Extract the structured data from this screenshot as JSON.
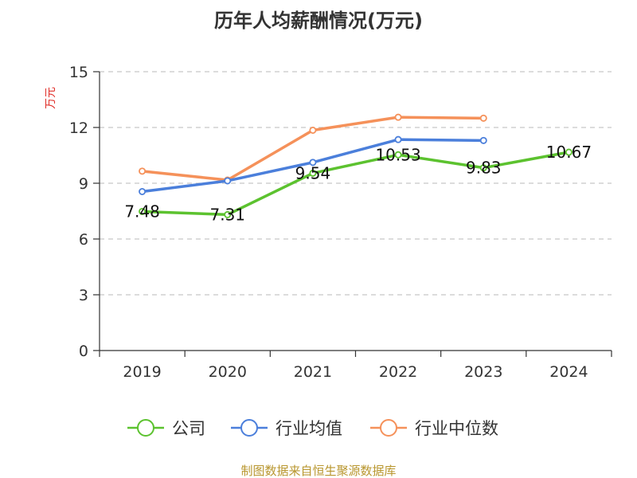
{
  "chart_data": {
    "type": "line",
    "title": "历年人均薪酬情况(万元)",
    "ylabel": "万元",
    "xlabel": "",
    "categories": [
      "2019",
      "2020",
      "2021",
      "2022",
      "2023",
      "2024"
    ],
    "ylim": [
      0,
      15
    ],
    "yticks": [
      0,
      3,
      6,
      9,
      12,
      15
    ],
    "grid": true,
    "legend_position": "bottom",
    "series": [
      {
        "name": "公司",
        "color": "#5cc22f",
        "values": [
          7.48,
          7.31,
          9.54,
          10.53,
          9.83,
          10.67
        ],
        "labels": [
          "7.48",
          "7.31",
          "9.54",
          "10.53",
          "9.83",
          "10.67"
        ]
      },
      {
        "name": "行业均值",
        "color": "#4b7fdb",
        "values": [
          8.55,
          9.13,
          10.12,
          11.35,
          11.3,
          null
        ]
      },
      {
        "name": "行业中位数",
        "color": "#f5915a",
        "values": [
          9.65,
          9.17,
          11.85,
          12.55,
          12.5,
          null
        ]
      }
    ]
  },
  "source": "制图数据来自恒生聚源数据库"
}
